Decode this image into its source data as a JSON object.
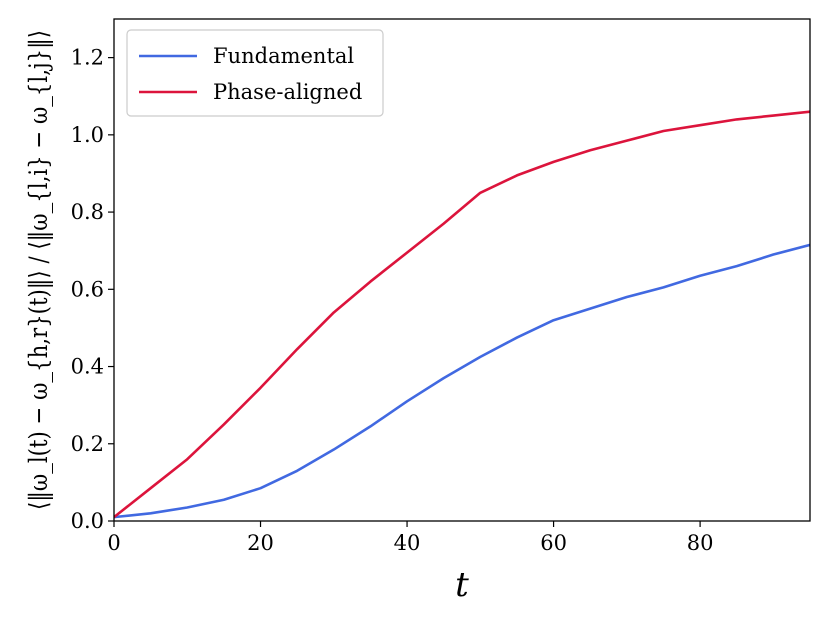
{
  "chart_data": {
    "type": "line",
    "title": "",
    "xlabel": "t",
    "ylabel": "⟨‖ω_l(t) − ω_{h,r}(t)‖⟩ / ⟨‖ω_{l,i} − ω_{l,j}‖⟩",
    "xlim": [
      0,
      95
    ],
    "ylim": [
      0.0,
      1.3
    ],
    "xticks": [
      0,
      20,
      40,
      60,
      80
    ],
    "xtick_labels": [
      "0",
      "20",
      "40",
      "60",
      "80"
    ],
    "yticks": [
      0.0,
      0.2,
      0.4,
      0.6,
      0.8,
      1.0,
      1.2
    ],
    "ytick_labels": [
      "0.0",
      "0.2",
      "0.4",
      "0.6",
      "0.8",
      "1.0",
      "1.2"
    ],
    "grid": false,
    "legend_position": "top-left",
    "series": [
      {
        "name": "Fundamental",
        "color": "#4169e1",
        "x": [
          0,
          5,
          10,
          15,
          20,
          25,
          30,
          35,
          40,
          45,
          50,
          55,
          60,
          65,
          70,
          75,
          80,
          85,
          90,
          95
        ],
        "y": [
          0.01,
          0.02,
          0.035,
          0.055,
          0.085,
          0.13,
          0.185,
          0.245,
          0.31,
          0.37,
          0.425,
          0.475,
          0.52,
          0.55,
          0.58,
          0.605,
          0.635,
          0.66,
          0.69,
          0.715
        ]
      },
      {
        "name": "Phase-aligned",
        "color": "#dc143c",
        "x": [
          0,
          5,
          10,
          15,
          20,
          25,
          30,
          35,
          40,
          45,
          50,
          55,
          60,
          65,
          70,
          75,
          80,
          85,
          90,
          95
        ],
        "y": [
          0.01,
          0.085,
          0.16,
          0.25,
          0.345,
          0.445,
          0.54,
          0.62,
          0.695,
          0.77,
          0.85,
          0.895,
          0.93,
          0.96,
          0.985,
          1.01,
          1.025,
          1.04,
          1.05,
          1.06
        ]
      }
    ]
  }
}
